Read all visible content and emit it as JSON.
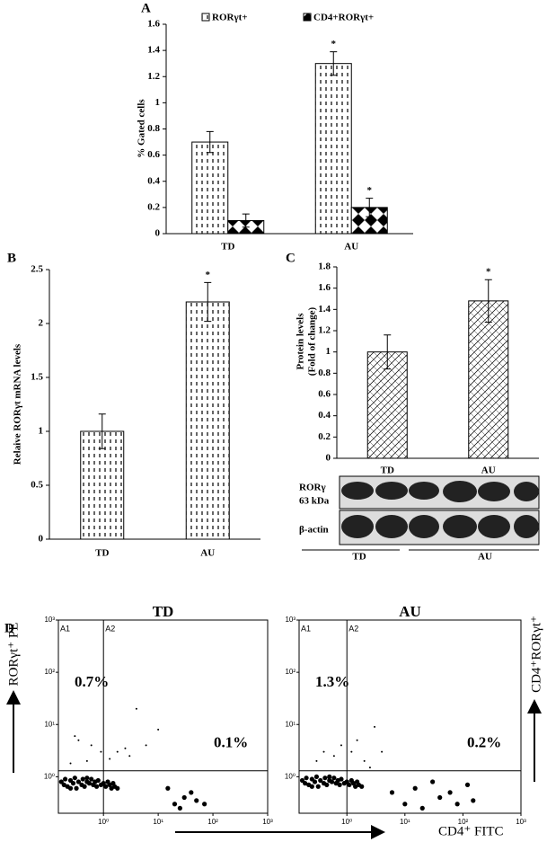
{
  "chart_data": [
    {
      "type": "bar",
      "panel": "A",
      "ylabel": "% Gated cells",
      "categories": [
        "TD",
        "AU"
      ],
      "series": [
        {
          "name": "RORγt+",
          "color": "#000000",
          "values": [
            0.7,
            1.3
          ],
          "errors": [
            0.08,
            0.09
          ],
          "value_notes": [
            null,
            "*"
          ]
        },
        {
          "name": "CD4+RORγt+",
          "color": "#000000",
          "values": [
            0.1,
            0.2
          ],
          "errors": [
            0.05,
            0.07
          ],
          "value_notes": [
            null,
            "*"
          ]
        }
      ],
      "ylim": [
        0,
        1.6
      ],
      "yticks": [
        0,
        0.2,
        0.4,
        0.6,
        0.8,
        1,
        1.2,
        1.4,
        1.6
      ]
    },
    {
      "type": "bar",
      "panel": "B",
      "ylabel": "Relaive RORγt  mRNA levels",
      "categories": [
        "TD",
        "AU"
      ],
      "series": [
        {
          "color": "#000000",
          "values": [
            1.0,
            2.2
          ],
          "errors": [
            0.16,
            0.18
          ],
          "value_notes": [
            null,
            "*"
          ]
        }
      ],
      "ylim": [
        0,
        2.5
      ],
      "yticks": [
        0,
        0.5,
        1,
        1.5,
        2,
        2.5
      ]
    },
    {
      "type": "bar",
      "panel": "C",
      "ylabel": [
        "Protein levels",
        "(Fold of change)"
      ],
      "categories": [
        "TD",
        "AU"
      ],
      "series": [
        {
          "color": "#000000",
          "values": [
            1.0,
            1.48
          ],
          "errors": [
            0.16,
            0.2
          ],
          "value_notes": [
            null,
            "*"
          ]
        }
      ],
      "ylim": [
        0,
        1.8
      ],
      "yticks": [
        0,
        0.2,
        0.4,
        0.6,
        0.8,
        1,
        1.2,
        1.4,
        1.6,
        1.8
      ],
      "blot": {
        "rows": [
          {
            "label": "RORγ",
            "sublabel": "63 kDa"
          },
          {
            "label": "β-actin"
          }
        ],
        "groups": [
          "TD",
          "AU"
        ]
      }
    },
    {
      "type": "scatter",
      "panel": "D",
      "title": "TD",
      "ylabel": "RORγt⁺ PE",
      "log": true,
      "quadrants": [
        "A1",
        "A2"
      ],
      "percentages": [
        "0.7%",
        "0.1%"
      ],
      "gates": {
        "x": 1.0,
        "y": 1.3
      },
      "xlim": [
        0.15,
        1000
      ],
      "ylim": [
        0.2,
        1000
      ],
      "xticks": [
        {
          "value": 1,
          "label": "10⁰"
        },
        {
          "value": 10,
          "label": "10¹"
        },
        {
          "value": 100,
          "label": "10²"
        },
        {
          "value": 1000,
          "label": "10³"
        }
      ],
      "yticks": [
        {
          "value": 1,
          "label": "10⁰"
        },
        {
          "value": 10,
          "label": "10¹"
        },
        {
          "value": 100,
          "label": "10²"
        },
        {
          "value": 1000,
          "label": "10³"
        }
      ],
      "color": "#000000",
      "x": [
        0.17,
        0.19,
        0.2,
        0.22,
        0.25,
        0.28,
        0.3,
        0.32,
        0.35,
        0.4,
        0.42,
        0.45,
        0.5,
        0.55,
        0.6,
        0.65,
        0.7,
        0.75,
        0.8,
        0.9,
        1.0,
        1.1,
        1.2,
        1.3,
        1.4,
        1.5,
        1.6,
        1.8,
        0.25,
        0.5,
        0.3,
        0.35,
        0.6,
        0.9,
        0.5,
        0.25,
        1.3,
        1.8,
        2.5,
        3,
        4,
        6,
        10,
        15,
        20,
        25,
        30,
        40,
        50,
        70
      ],
      "values": [
        0.8,
        0.7,
        0.9,
        0.65,
        0.85,
        0.75,
        0.95,
        0.6,
        0.8,
        0.7,
        0.9,
        0.65,
        0.8,
        0.75,
        0.9,
        0.7,
        0.8,
        0.65,
        0.85,
        0.7,
        0.75,
        0.65,
        0.8,
        0.7,
        0.6,
        0.75,
        0.65,
        0.6,
        0.6,
        0.95,
        6,
        5,
        4,
        3,
        2,
        1.8,
        2.2,
        3,
        3.5,
        2.5,
        20,
        4,
        8,
        0.6,
        0.3,
        0.25,
        0.4,
        0.5,
        0.35,
        0.3
      ]
    },
    {
      "type": "scatter",
      "title": "AU",
      "ylabel": "CD4⁺RORγt⁺",
      "xlabel": "CD4⁺ FITC",
      "log": true,
      "quadrants": [
        "A1",
        "A2"
      ],
      "percentages": [
        "1.3%",
        "0.2%"
      ],
      "gates": {
        "x": 1.0,
        "y": 1.3
      },
      "xlim": [
        0.15,
        1000
      ],
      "ylim": [
        0.2,
        1000
      ],
      "xticks": [
        {
          "value": 1,
          "label": "10⁰"
        },
        {
          "value": 10,
          "label": "10¹"
        },
        {
          "value": 100,
          "label": "10²"
        },
        {
          "value": 1000,
          "label": "10³"
        }
      ],
      "yticks": [
        {
          "value": 1,
          "label": "10⁰"
        },
        {
          "value": 10,
          "label": "10¹"
        },
        {
          "value": 100,
          "label": "10²"
        },
        {
          "value": 1000,
          "label": "10³"
        }
      ],
      "color": "#000000",
      "x": [
        0.17,
        0.19,
        0.2,
        0.22,
        0.25,
        0.28,
        0.3,
        0.32,
        0.35,
        0.4,
        0.42,
        0.45,
        0.5,
        0.55,
        0.6,
        0.65,
        0.7,
        0.75,
        0.8,
        0.9,
        1.0,
        1.1,
        1.2,
        1.3,
        1.4,
        1.5,
        1.6,
        1.8,
        0.25,
        0.5,
        0.3,
        0.4,
        0.6,
        0.8,
        1.2,
        1.5,
        2,
        3,
        4,
        2.5,
        6,
        10,
        15,
        20,
        30,
        40,
        60,
        80,
        120,
        150
      ],
      "values": [
        0.85,
        0.75,
        0.95,
        0.7,
        0.9,
        0.8,
        1.0,
        0.65,
        0.85,
        0.75,
        0.95,
        0.7,
        0.85,
        0.8,
        0.95,
        0.75,
        0.85,
        0.7,
        0.9,
        0.75,
        0.8,
        0.7,
        0.85,
        0.75,
        0.65,
        0.8,
        0.7,
        0.65,
        0.65,
        1.0,
        2,
        3,
        2.5,
        4,
        3,
        5,
        2,
        9,
        3,
        1.5,
        0.5,
        0.3,
        0.6,
        0.25,
        0.8,
        0.4,
        0.5,
        0.3,
        0.7,
        0.35
      ]
    }
  ]
}
